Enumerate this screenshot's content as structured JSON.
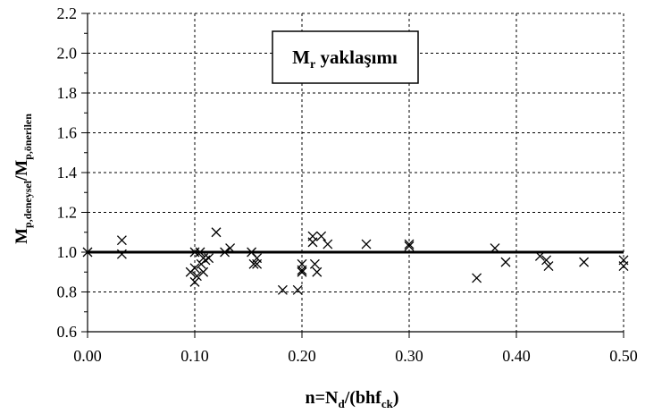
{
  "chart_data": {
    "type": "scatter",
    "title": "",
    "annotation": {
      "main": "M",
      "sub": "r",
      "rest": " yaklaşımı"
    },
    "xlabel": {
      "a": "n=N",
      "b": "d",
      "c": "/(bhf",
      "d": "ck",
      "e": ")"
    },
    "ylabel": {
      "a": "M",
      "b": "p,deneysel",
      "c": "/M",
      "d": "p,önerilen"
    },
    "xlim": [
      0,
      0.5
    ],
    "ylim": [
      0.6,
      2.2
    ],
    "x_ticks": [
      0,
      0.1,
      0.2,
      0.3,
      0.4,
      0.5
    ],
    "x_tick_labels": [
      "0.00",
      "0.10",
      "0.20",
      "0.30",
      "0.40",
      "0.50"
    ],
    "y_ticks": [
      0.6,
      0.8,
      1.0,
      1.2,
      1.4,
      1.6,
      1.8,
      2.0,
      2.2
    ],
    "y_tick_labels": [
      "0.6",
      "0.8",
      "1.0",
      "1.2",
      "1.4",
      "1.6",
      "1.8",
      "2.0",
      "2.2"
    ],
    "grid": true,
    "reference_line": 1.0,
    "marker": "x",
    "series": [
      {
        "points": [
          [
            0.0,
            1.0
          ],
          [
            0.032,
            1.06
          ],
          [
            0.032,
            0.99
          ],
          [
            0.096,
            0.9
          ],
          [
            0.1,
            1.0
          ],
          [
            0.1,
            0.92
          ],
          [
            0.1,
            0.85
          ],
          [
            0.102,
            0.88
          ],
          [
            0.105,
            1.0
          ],
          [
            0.106,
            0.94
          ],
          [
            0.108,
            0.97
          ],
          [
            0.108,
            0.9
          ],
          [
            0.11,
            0.96
          ],
          [
            0.113,
            0.97
          ],
          [
            0.12,
            1.1
          ],
          [
            0.128,
            1.0
          ],
          [
            0.133,
            1.02
          ],
          [
            0.153,
            1.0
          ],
          [
            0.155,
            0.94
          ],
          [
            0.158,
            0.97
          ],
          [
            0.158,
            0.94
          ],
          [
            0.182,
            0.81
          ],
          [
            0.196,
            0.81
          ],
          [
            0.2,
            0.94
          ],
          [
            0.2,
            0.91
          ],
          [
            0.2,
            0.9
          ],
          [
            0.21,
            1.08
          ],
          [
            0.21,
            1.05
          ],
          [
            0.212,
            0.94
          ],
          [
            0.214,
            0.9
          ],
          [
            0.218,
            1.08
          ],
          [
            0.224,
            1.04
          ],
          [
            0.26,
            1.04
          ],
          [
            0.3,
            1.04
          ],
          [
            0.3,
            1.03
          ],
          [
            0.363,
            0.87
          ],
          [
            0.38,
            1.02
          ],
          [
            0.39,
            0.95
          ],
          [
            0.422,
            0.98
          ],
          [
            0.428,
            0.96
          ],
          [
            0.43,
            0.93
          ],
          [
            0.463,
            0.95
          ],
          [
            0.5,
            0.96
          ],
          [
            0.5,
            0.93
          ]
        ]
      }
    ]
  }
}
